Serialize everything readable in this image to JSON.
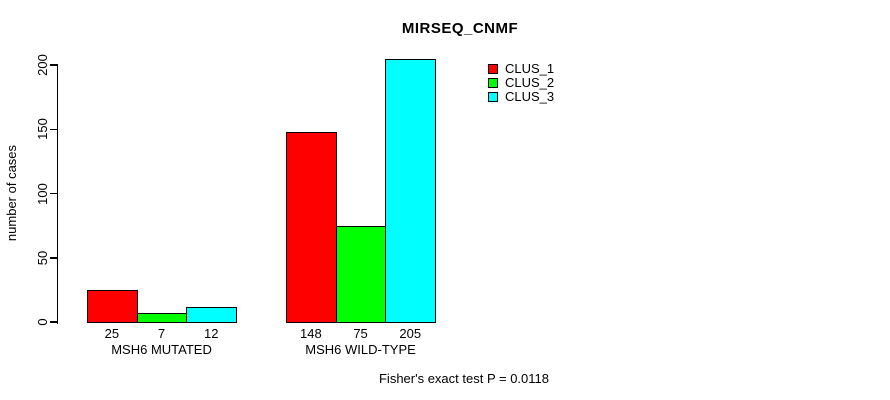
{
  "chart_data": {
    "type": "bar",
    "title": "MIRSEQ_CNMF",
    "ylabel": "number of cases",
    "xlabel": "",
    "categories": [
      "MSH6 MUTATED",
      "MSH6 WILD-TYPE"
    ],
    "series": [
      {
        "name": "CLUS_1",
        "color": "#FF0000",
        "values": [
          25,
          148
        ]
      },
      {
        "name": "CLUS_2",
        "color": "#00FF00",
        "values": [
          7,
          75
        ]
      },
      {
        "name": "CLUS_3",
        "color": "#00FFFF",
        "values": [
          12,
          205
        ]
      }
    ],
    "bar_value_labels": [
      [
        "25",
        "7",
        "12"
      ],
      [
        "148",
        "75",
        "205"
      ]
    ],
    "yticks": [
      0,
      50,
      100,
      150,
      200
    ],
    "ylim": [
      0,
      205
    ],
    "grid": false,
    "legend_position": "top-right",
    "legend_entries": [
      "CLUS_1",
      "CLUS_2",
      "CLUS_3"
    ],
    "annotation": "Fisher's exact test P = 0.0118"
  },
  "colors": {
    "background": "#FFFFFF",
    "axis": "#000000",
    "text": "#000000",
    "clus_1": "#FF0000",
    "clus_2": "#00FF00",
    "clus_3": "#00FFFF"
  }
}
